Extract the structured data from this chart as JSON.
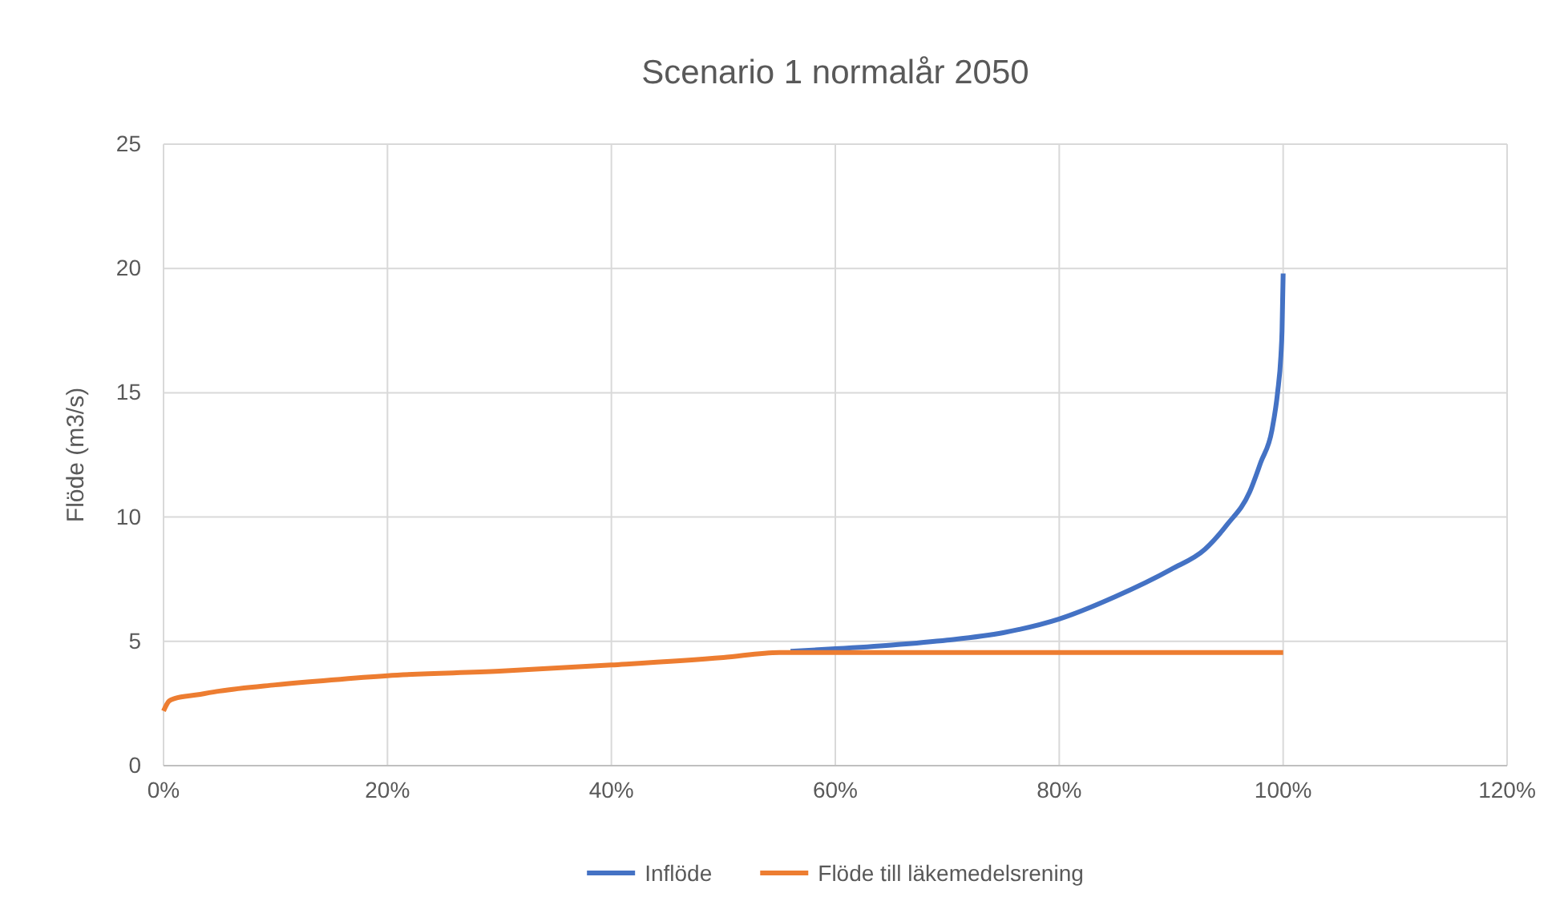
{
  "chart_data": {
    "type": "line",
    "title": "Scenario 1 normalår 2050",
    "ylabel": "Flöde (m3/s)",
    "xlim": [
      0,
      1.2
    ],
    "xticks": [
      {
        "value": 0,
        "label": "0%"
      },
      {
        "value": 0.2,
        "label": "20%"
      },
      {
        "value": 0.4,
        "label": "40%"
      },
      {
        "value": 0.6,
        "label": "60%"
      },
      {
        "value": 0.8,
        "label": "80%"
      },
      {
        "value": 1,
        "label": "100%"
      },
      {
        "value": 1.2,
        "label": "120%"
      }
    ],
    "ylim": [
      0,
      25
    ],
    "yticks": [
      0,
      5,
      10,
      15,
      20,
      25
    ],
    "grid": true,
    "legend": "bottom",
    "marker": "none",
    "line_style": "solid",
    "series": [
      {
        "name": "Inflöde",
        "color": "#4472c4",
        "x": [
          0.56,
          0.6,
          0.65,
          0.7,
          0.75,
          0.8,
          0.85,
          0.9,
          0.93,
          0.95,
          0.97,
          0.98,
          0.99,
          0.995,
          0.998,
          0.999,
          1
        ],
        "values": [
          4.6,
          4.7,
          4.85,
          5.05,
          5.35,
          5.9,
          6.8,
          7.9,
          8.7,
          9.7,
          11,
          12.2,
          13.5,
          15,
          16.5,
          17.5,
          19.8
        ]
      },
      {
        "name": "Flöde till läkemedelsrening",
        "color": "#ed7d31",
        "x": [
          0,
          0.005,
          0.01,
          0.03,
          0.05,
          0.1,
          0.15,
          0.2,
          0.3,
          0.4,
          0.5,
          0.55,
          0.6,
          0.7,
          0.8,
          0.9,
          1
        ],
        "values": [
          2.2,
          2.6,
          2.7,
          2.85,
          3,
          3.25,
          3.45,
          3.62,
          3.8,
          4.05,
          4.35,
          4.55,
          4.55,
          4.55,
          4.55,
          4.55,
          4.55
        ]
      }
    ]
  }
}
